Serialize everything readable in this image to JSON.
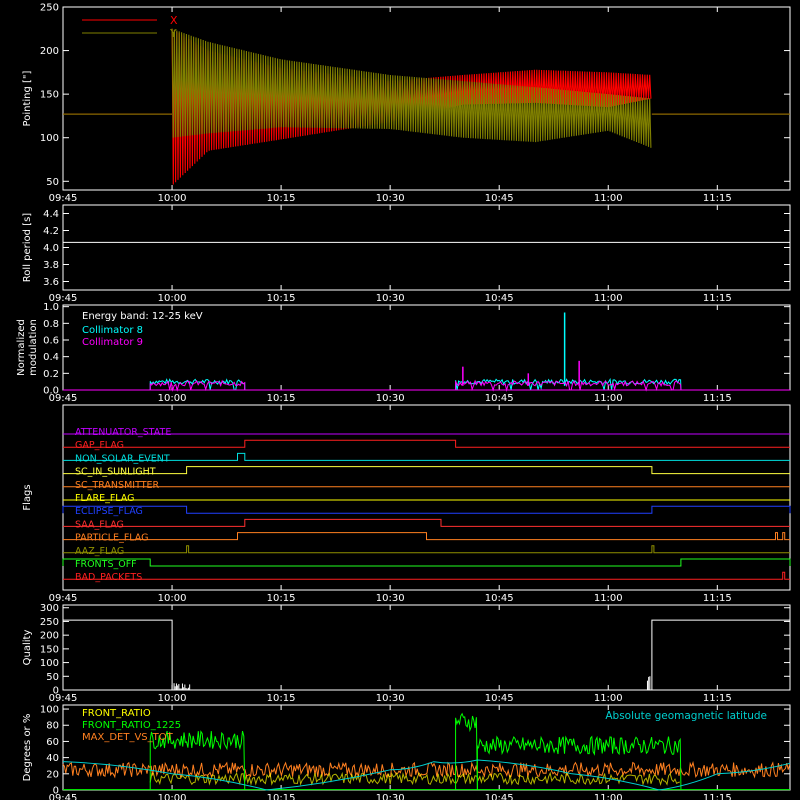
{
  "time_ticks": [
    "09:45",
    "10:00",
    "10:15",
    "10:30",
    "10:45",
    "11:00",
    "11:15"
  ],
  "chart_data": [
    {
      "type": "line",
      "ylabel": "Pointing [\"]",
      "yticks": [
        50,
        100,
        150,
        200,
        250
      ],
      "ylim": [
        40,
        250
      ],
      "x_unit": "time",
      "x_range": [
        "09:45",
        "11:25"
      ],
      "series": [
        {
          "name": "X",
          "color": "#ff0000",
          "baseline": 127,
          "active_start": "10:00",
          "active_end": "11:06",
          "envelope": [
            [
              "10:00",
              225,
              45
            ],
            [
              "10:05",
              200,
              85
            ],
            [
              "10:15",
              180,
              98
            ],
            [
              "10:30",
              165,
              118
            ],
            [
              "10:40",
              172,
              138
            ],
            [
              "10:50",
              178,
              140
            ],
            [
              "11:00",
              175,
              135
            ],
            [
              "11:06",
              172,
              145
            ]
          ]
        },
        {
          "name": "Y",
          "color": "#808000",
          "baseline": 127,
          "active_start": "10:00",
          "active_end": "11:06",
          "envelope": [
            [
              "10:00",
              225,
              100
            ],
            [
              "10:05",
              210,
              105
            ],
            [
              "10:15",
              190,
              112
            ],
            [
              "10:30",
              172,
              110
            ],
            [
              "10:40",
              165,
              100
            ],
            [
              "10:50",
              158,
              95
            ],
            [
              "11:00",
              150,
              108
            ],
            [
              "11:06",
              145,
              88
            ]
          ]
        }
      ]
    },
    {
      "type": "line",
      "ylabel": "Roll period [s]",
      "yticks": [
        3.6,
        3.8,
        4.0,
        4.2,
        4.4
      ],
      "ylim": [
        3.5,
        4.5
      ],
      "series": [
        {
          "name": "",
          "color": "#ffffff",
          "values": [
            [
              "09:45",
              4.06
            ],
            [
              "11:25",
              4.06
            ]
          ]
        }
      ]
    },
    {
      "type": "line",
      "ylabel": [
        "Normalized",
        "modulation"
      ],
      "yticks": [
        0.0,
        0.2,
        0.4,
        0.6,
        0.8,
        1.0
      ],
      "ylim": [
        0,
        1.02
      ],
      "annotation": "Energy band: 12-25 keV",
      "series": [
        {
          "name": "Collimator 8",
          "color": "#00ffff",
          "segments": [
            [
              "09:57",
              "10:10"
            ],
            [
              "10:39",
              "11:10"
            ]
          ],
          "typical": 0.1,
          "spikes": [
            [
              "10:54",
              0.93
            ]
          ]
        },
        {
          "name": "Collimator 9",
          "color": "#ff00ff",
          "segments": [
            [
              "09:57",
              "10:10"
            ],
            [
              "10:39",
              "11:10"
            ]
          ],
          "typical": 0.08,
          "spikes": [
            [
              "10:40",
              0.28
            ],
            [
              "10:56",
              0.35
            ],
            [
              "10:49",
              0.2
            ]
          ]
        }
      ]
    },
    {
      "type": "line",
      "ylabel": "Flags",
      "flags": [
        {
          "name": "ATTENUATOR_STATE",
          "color": "#c000ff",
          "high": []
        },
        {
          "name": "GAP_FLAG",
          "color": "#ff2020",
          "high": [
            [
              "10:10",
              "10:39"
            ]
          ]
        },
        {
          "name": "NON_SOLAR_EVENT",
          "color": "#00e0e0",
          "high": [
            [
              "10:09",
              "10:10"
            ]
          ]
        },
        {
          "name": "SC_IN_SUNLIGHT",
          "color": "#ffff40",
          "high": [
            [
              "10:02",
              "11:06"
            ]
          ]
        },
        {
          "name": "SC_TRANSMITTER",
          "color": "#ff8020",
          "high": []
        },
        {
          "name": "FLARE_FLAG",
          "color": "#ffff00",
          "high": []
        },
        {
          "name": "ECLIPSE_FLAG",
          "color": "#2040ff",
          "high": [
            [
              "09:45",
              "10:02"
            ],
            [
              "11:06",
              "11:25"
            ]
          ]
        },
        {
          "name": "SAA_FLAG",
          "color": "#ff3030",
          "high": [
            [
              "10:10",
              "10:37"
            ]
          ]
        },
        {
          "name": "PARTICLE_FLAG",
          "color": "#ff8020",
          "high": [
            [
              "10:09",
              "10:35"
            ],
            [
              "11:23",
              "11:23"
            ],
            [
              "11:24",
              "11:24"
            ]
          ]
        },
        {
          "name": "AAZ_FLAG",
          "color": "#909000",
          "high": [
            [
              "10:02",
              "10:02"
            ],
            [
              "11:06",
              "11:06"
            ]
          ]
        },
        {
          "name": "FRONTS_OFF",
          "color": "#20ff20",
          "high": [
            [
              "09:45",
              "09:57"
            ],
            [
              "11:10",
              "11:25"
            ]
          ]
        },
        {
          "name": "BAD_PACKETS",
          "color": "#ff2020",
          "high": [
            [
              "11:24",
              "11:24"
            ]
          ]
        }
      ]
    },
    {
      "type": "line",
      "ylabel": "Quality",
      "yticks": [
        0,
        50,
        100,
        150,
        200,
        250,
        300
      ],
      "ylim": [
        0,
        310
      ],
      "series": [
        {
          "name": "",
          "color": "#ffffff",
          "values": [
            [
              "09:45",
              255
            ],
            [
              "10:00",
              255
            ],
            [
              "10:00",
              0
            ],
            [
              "11:06",
              0
            ],
            [
              "11:06",
              255
            ],
            [
              "11:25",
              255
            ]
          ]
        }
      ]
    },
    {
      "type": "line",
      "ylabel": "Degrees or %",
      "yticks": [
        0,
        20,
        40,
        60,
        80,
        100
      ],
      "ylim": [
        0,
        105
      ],
      "series": [
        {
          "name": "FRONT_RATIO",
          "color": "#ffff00"
        },
        {
          "name": "FRONT_RATIO_1225",
          "color": "#00ff00",
          "segments": [
            [
              "09:57",
              "10:10",
              62
            ],
            [
              "10:39",
              "10:42",
              85
            ],
            [
              "10:42",
              "11:10",
              55
            ]
          ]
        },
        {
          "name": "MAX_DET_VS_TOT",
          "color": "#ff8020",
          "typical": 25
        },
        {
          "name": "Absolute geomagnetic latitude",
          "color": "#00d0d0",
          "values": [
            [
              "09:45",
              35
            ],
            [
              "10:00",
              20
            ],
            [
              "10:13",
              0
            ],
            [
              "10:30",
              25
            ],
            [
              "10:36",
              35
            ],
            [
              "10:42",
              37
            ],
            [
              "10:55",
              20
            ],
            [
              "11:07",
              0
            ],
            [
              "11:15",
              20
            ],
            [
              "11:25",
              33
            ]
          ]
        }
      ]
    }
  ]
}
